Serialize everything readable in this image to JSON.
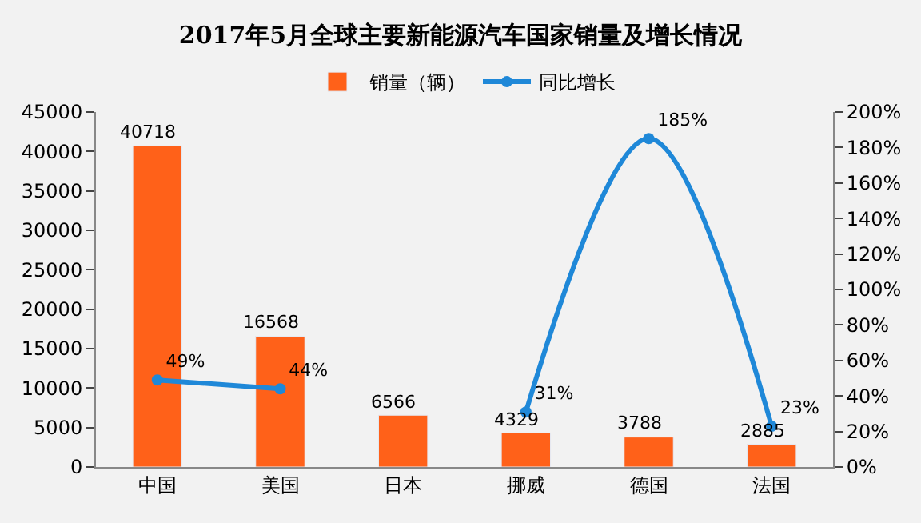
{
  "chart_data": {
    "type": "bar",
    "title": "2017年5月全球主要新能源汽车国家销量及增长情况",
    "categories": [
      "中国",
      "美国",
      "日本",
      "挪威",
      "德国",
      "法国"
    ],
    "series": [
      {
        "name": "销量（辆）",
        "color": "#ff6119",
        "values": [
          40718,
          16568,
          6566,
          4329,
          3788,
          2885
        ]
      },
      {
        "name": "同比增长",
        "type": "line",
        "axis": "y2",
        "color": "#1f88d8",
        "marker": "circle",
        "values": [
          49,
          44,
          null,
          31,
          185,
          23
        ],
        "value_labels": [
          "49%",
          "44%",
          null,
          "31%",
          "185%",
          "23%"
        ]
      }
    ],
    "data_labels": true,
    "ylim": [
      0,
      45000
    ],
    "yticks": [
      0,
      5000,
      10000,
      15000,
      20000,
      25000,
      30000,
      35000,
      40000,
      45000
    ],
    "y2lim": [
      0,
      200
    ],
    "y2ticks": [
      {
        "value": 0,
        "label": "0%"
      },
      {
        "value": 20,
        "label": "20%"
      },
      {
        "value": 40,
        "label": "40%"
      },
      {
        "value": 60,
        "label": "60%"
      },
      {
        "value": 80,
        "label": "80%"
      },
      {
        "value": 100,
        "label": "100%"
      },
      {
        "value": 120,
        "label": "120%"
      },
      {
        "value": 140,
        "label": "140%"
      },
      {
        "value": 160,
        "label": "160%"
      },
      {
        "value": 180,
        "label": "180%"
      },
      {
        "value": 200,
        "label": "200%"
      }
    ],
    "grid": false,
    "legend": "top"
  }
}
